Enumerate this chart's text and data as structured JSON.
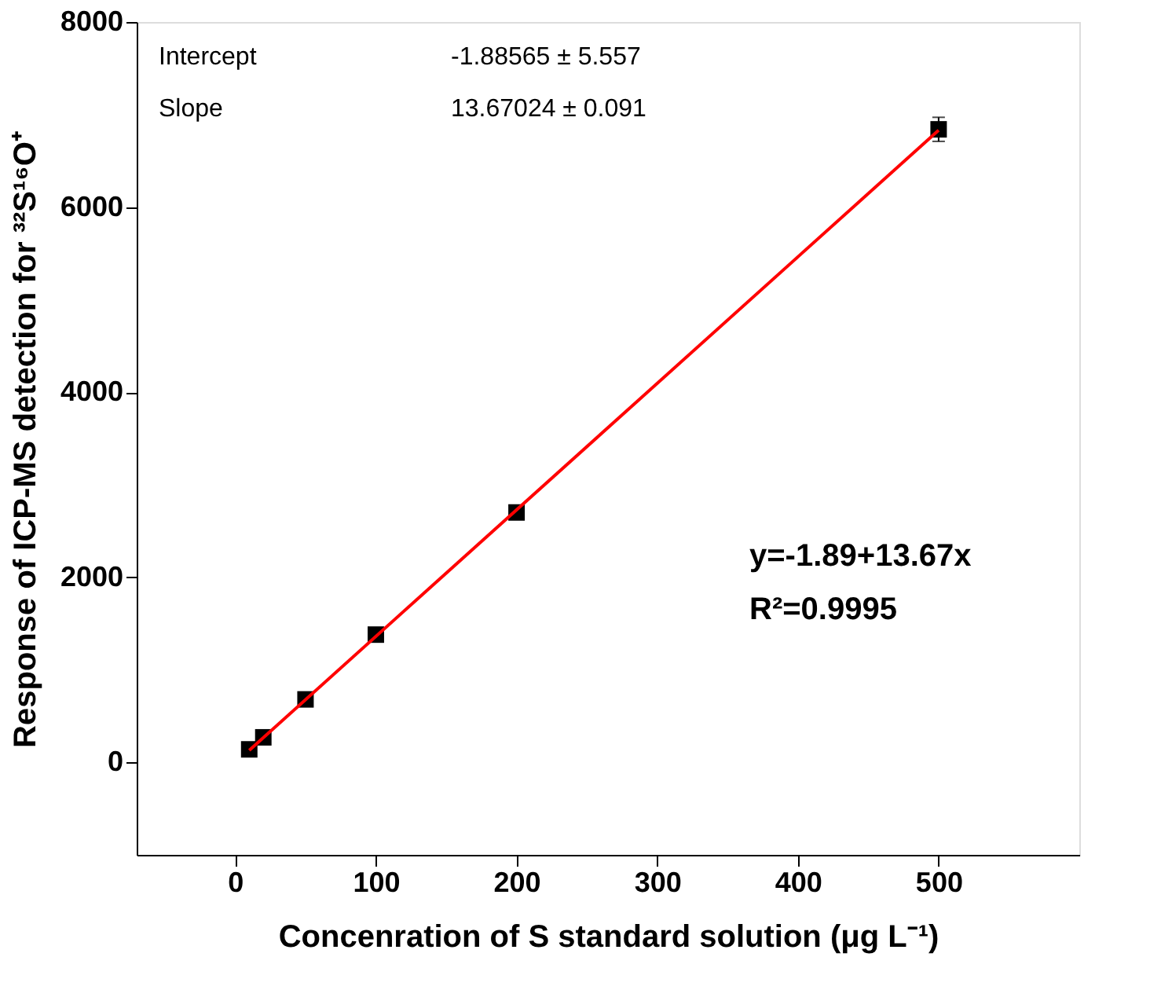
{
  "chart_data": {
    "type": "scatter",
    "xlabel": "Concenration of S standard solution (μg L⁻¹)",
    "ylabel": "Response of ICP-MS detection for ³²S¹⁶O⁺",
    "xlim": [
      -70,
      600
    ],
    "xticks": [
      0,
      100,
      200,
      300,
      400,
      500
    ],
    "ylim": [
      -1000,
      8000
    ],
    "yticks": [
      0,
      2000,
      4000,
      6000,
      8000
    ],
    "grid": false,
    "marker": "square",
    "series": [
      {
        "color": "#000000",
        "x": [
          10,
          20,
          50,
          100,
          200,
          500
        ],
        "values": [
          140,
          270,
          680,
          1380,
          2700,
          6840
        ],
        "errors": [
          null,
          null,
          null,
          null,
          null,
          130
        ]
      },
      {
        "type": "line",
        "color": "#ff0000",
        "x": [
          10,
          500
        ],
        "values": [
          130,
          6830
        ],
        "line_style": "solid",
        "marker": "none"
      }
    ],
    "annotations": [
      "Intercept",
      "-1.88565 ± 5.557",
      "Slope",
      "13.67024 ± 0.091",
      "y=-1.89+13.67x",
      "R²=0.9995"
    ]
  }
}
